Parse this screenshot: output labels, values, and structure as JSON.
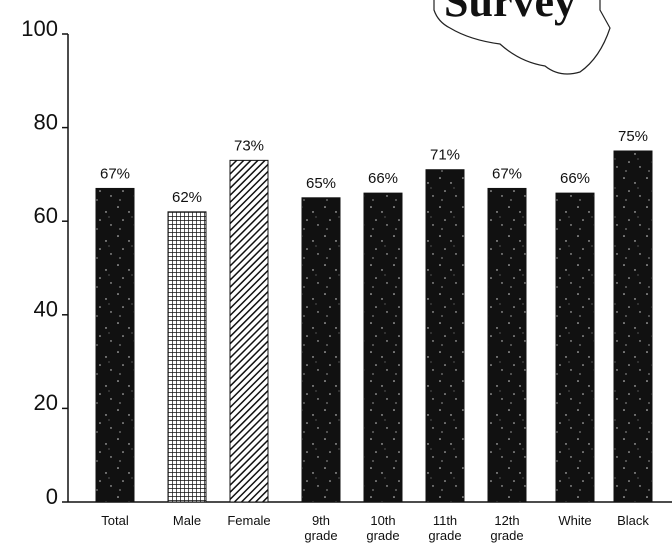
{
  "chart_data": {
    "type": "bar",
    "annotation": "Survey",
    "categories": [
      "Total",
      "Male",
      "Female",
      "9th grade",
      "10th grade",
      "11th grade",
      "12th grade",
      "White",
      "Black"
    ],
    "values": [
      67,
      62,
      73,
      65,
      66,
      71,
      67,
      66,
      75
    ],
    "value_labels": [
      "67%",
      "62%",
      "73%",
      "65%",
      "66%",
      "71%",
      "67%",
      "66%",
      "75%"
    ],
    "fills": [
      "speckle",
      "grid",
      "hatch",
      "speckle",
      "speckle",
      "speckle",
      "speckle",
      "speckle",
      "speckle"
    ],
    "color": "#111111",
    "ylim": [
      0,
      100
    ],
    "yticks": [
      0,
      20,
      40,
      60,
      80,
      100
    ]
  }
}
